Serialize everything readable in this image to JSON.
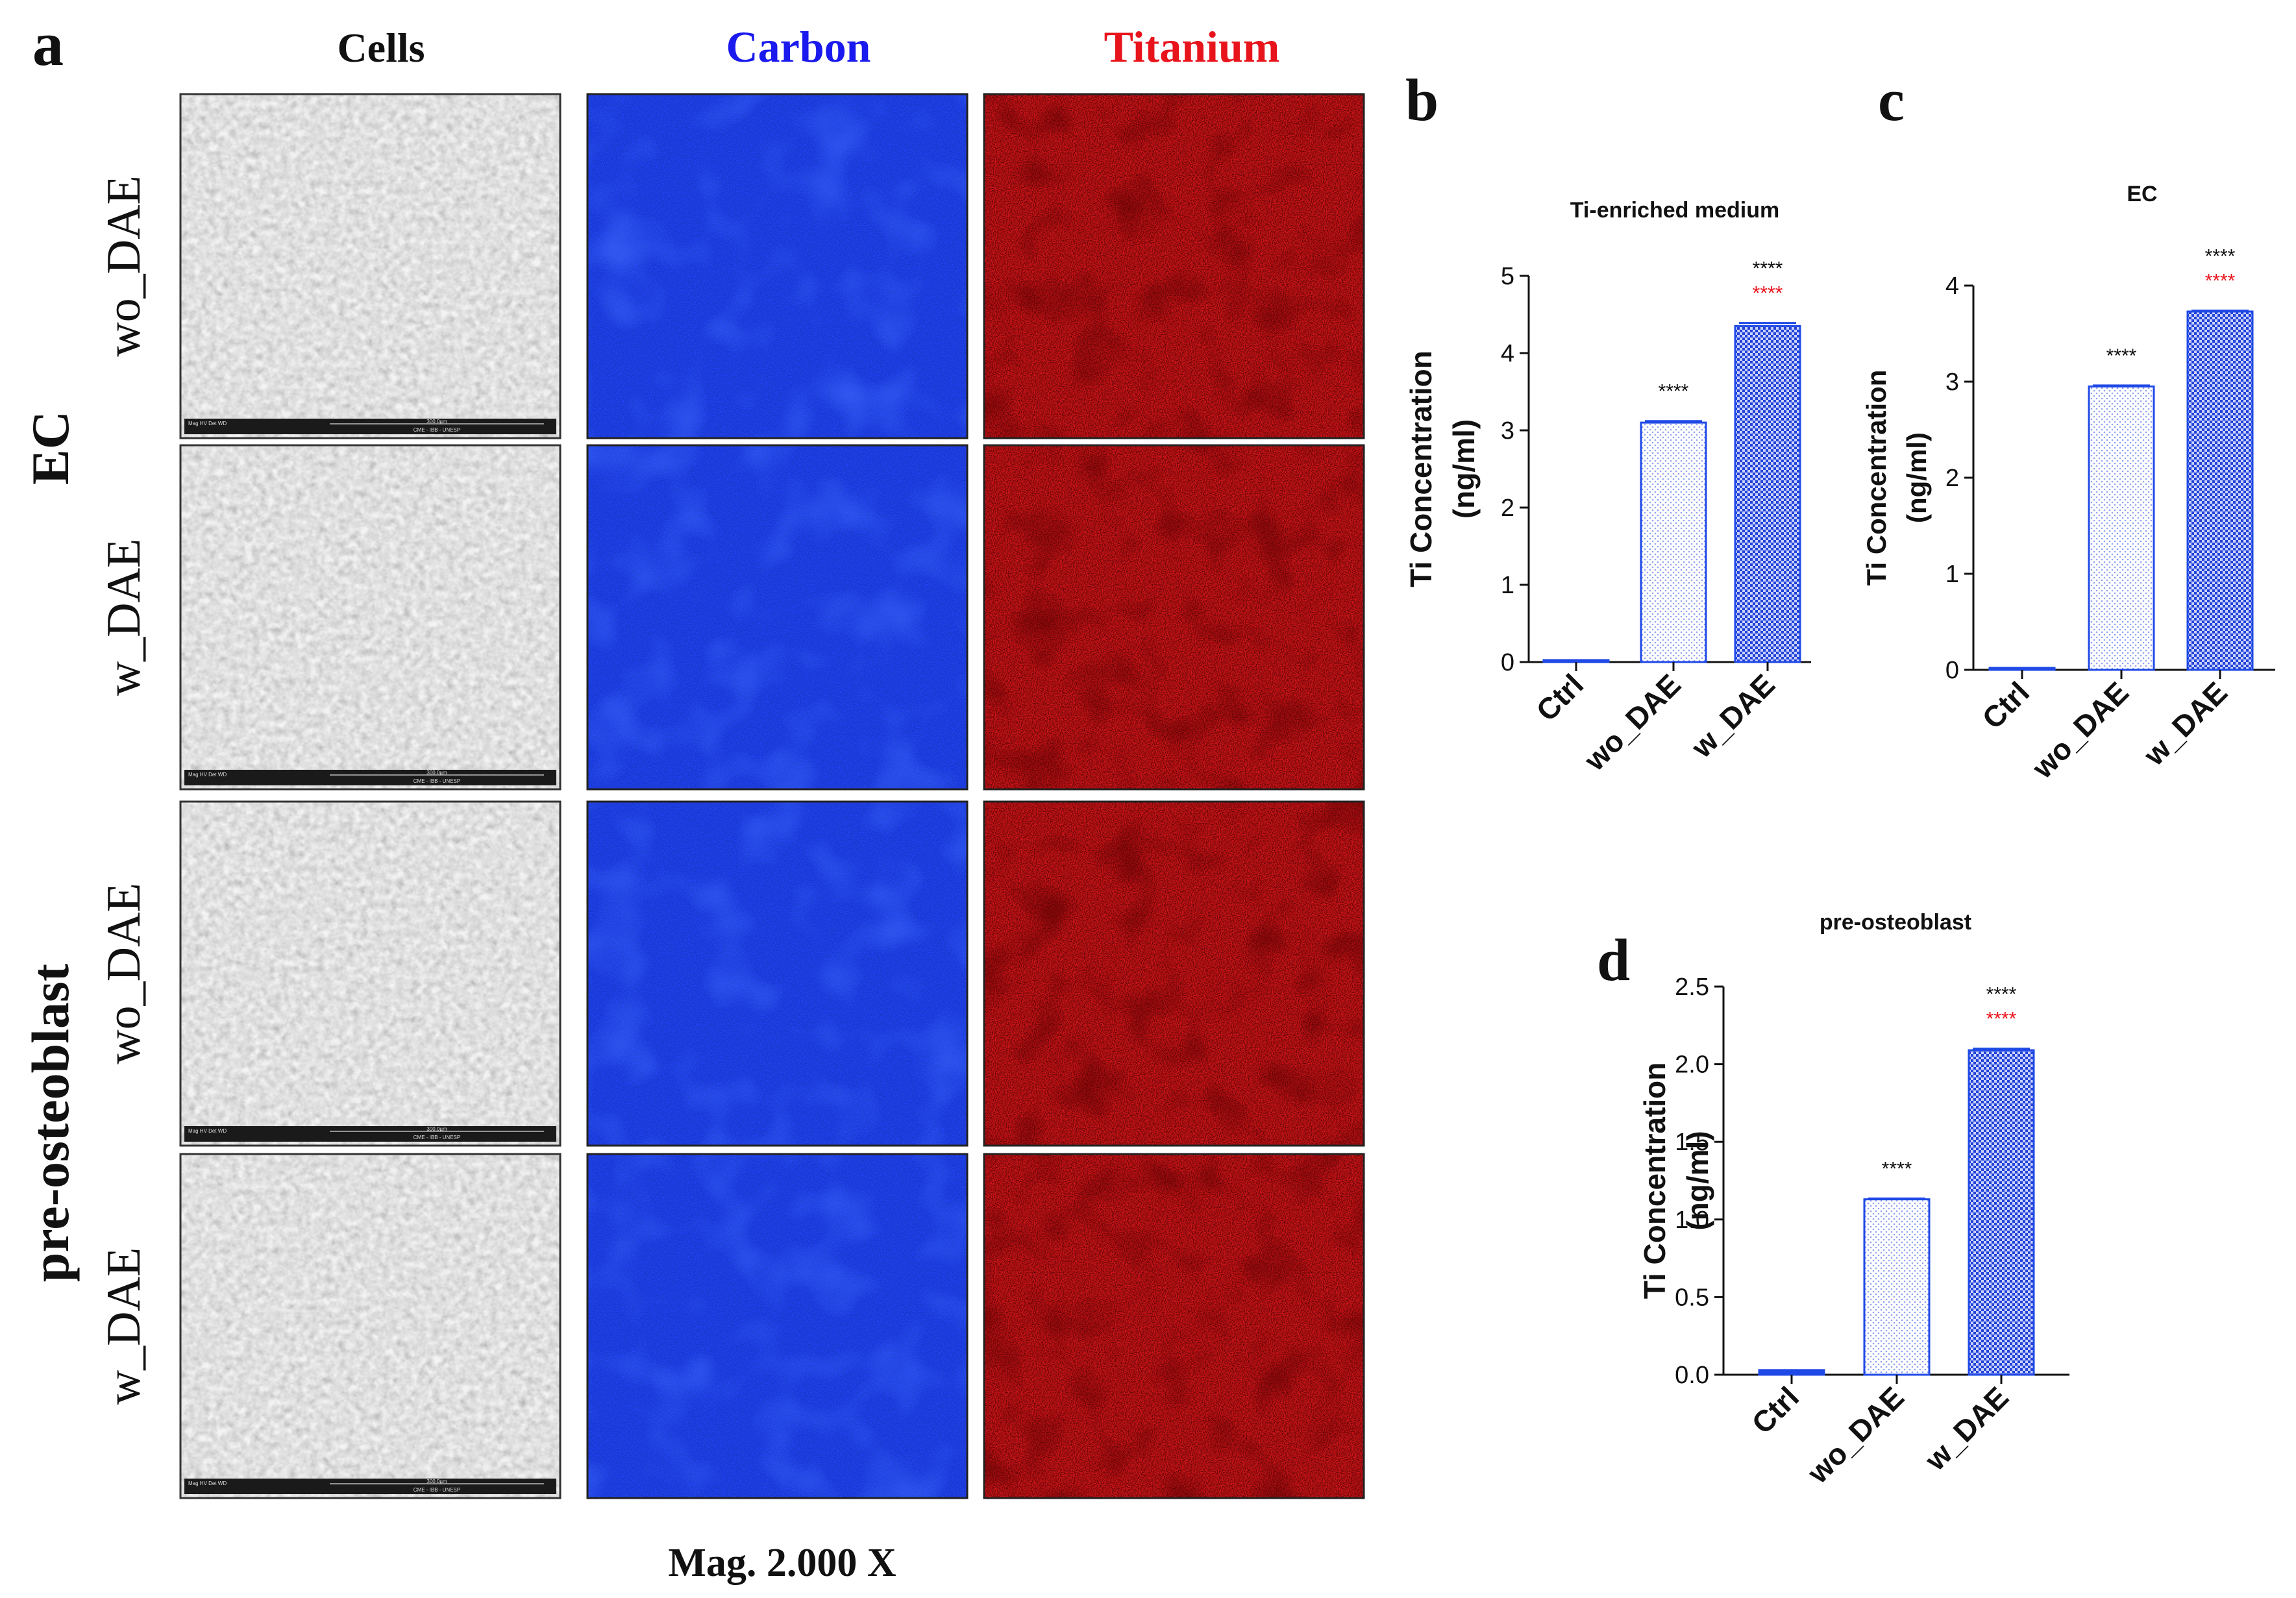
{
  "panel_letters": {
    "a": "a",
    "b": "b",
    "c": "c",
    "d": "d"
  },
  "column_headers": {
    "cells": "Cells",
    "carbon": "Carbon",
    "titanium": "Titanium"
  },
  "group_labels": {
    "ec": "EC",
    "pre_osteoblast": "pre-osteoblast"
  },
  "row_labels": [
    "wo_DAE",
    "w_DAE",
    "wo_DAE",
    "w_DAE"
  ],
  "magnification": "Mag. 2.000 X",
  "sem_footer": {
    "line1": [
      "Mag",
      "HV",
      "Det",
      "WD"
    ],
    "scale": "300.0µm",
    "institution": "CME - IBB - UNESP"
  },
  "colors": {
    "carbon_header": "#1a1aee",
    "titanium_header": "#e8141c",
    "bar_stroke": "#1f49e6",
    "sig_black": "#111111",
    "sig_red": "#e8141c"
  },
  "chart_data": [
    {
      "panel": "b",
      "type": "bar",
      "title": "Ti-enriched medium",
      "ylabel": [
        "Ti Concentration",
        "(ng/ml)"
      ],
      "categories": [
        "Ctrl",
        "wo_DAE",
        "w_DAE"
      ],
      "values": [
        0,
        3.1,
        4.35
      ],
      "errors": [
        0,
        0.02,
        0.04
      ],
      "ylim": [
        0,
        5
      ],
      "yticks": [
        "0",
        "1",
        "2",
        "3",
        "4",
        "5"
      ],
      "significance": [
        {
          "category": "wo_DAE",
          "black": "****",
          "red": ""
        },
        {
          "category": "w_DAE",
          "black": "****",
          "red": "****"
        }
      ]
    },
    {
      "panel": "c",
      "type": "bar",
      "title": "EC",
      "ylabel": [
        "Ti Concentration",
        "(ng/ml)"
      ],
      "categories": [
        "Ctrl",
        "wo_DAE",
        "w_DAE"
      ],
      "values": [
        0.02,
        2.95,
        3.73
      ],
      "errors": [
        0,
        0.01,
        0.01
      ],
      "ylim": [
        0,
        4
      ],
      "yticks": [
        "0",
        "1",
        "2",
        "3",
        "4"
      ],
      "significance": [
        {
          "category": "wo_DAE",
          "black": "****",
          "red": ""
        },
        {
          "category": "w_DAE",
          "black": "****",
          "red": "****"
        }
      ]
    },
    {
      "panel": "d",
      "type": "bar",
      "title": "pre-osteoblast",
      "ylabel": [
        "Ti Concentration",
        "(ng/ml)"
      ],
      "categories": [
        "Ctrl",
        "wo_DAE",
        "w_DAE"
      ],
      "values": [
        0.03,
        1.13,
        2.09
      ],
      "errors": [
        0,
        0.005,
        0.01
      ],
      "ylim": [
        0,
        2.5
      ],
      "yticks": [
        "0.0",
        "0.5",
        "1.0",
        "1.5",
        "2.0",
        "2.5"
      ],
      "significance": [
        {
          "category": "wo_DAE",
          "black": "****",
          "red": ""
        },
        {
          "category": "w_DAE",
          "black": "****",
          "red": "****"
        }
      ]
    }
  ]
}
